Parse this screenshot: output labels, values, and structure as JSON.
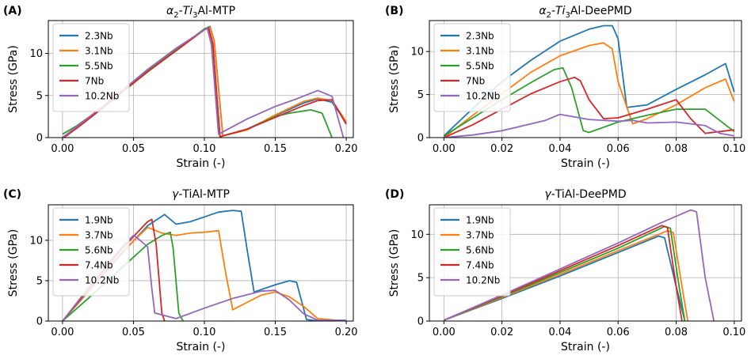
{
  "chart_data": [
    {
      "panel": "(A)",
      "title_main": "α",
      "title_sub": "2",
      "title_mid": "-Ti",
      "title_sub2": "3",
      "title_end": "Al-MTP",
      "type": "line",
      "xlabel": "Strain (-)",
      "ylabel": "Stress (GPa)",
      "xlim": [
        -0.01,
        0.205
      ],
      "ylim": [
        0,
        13.9
      ],
      "xticks": [
        "0.00",
        "0.05",
        "0.10",
        "0.15",
        "0.20"
      ],
      "xtick_vals": [
        0,
        0.05,
        0.1,
        0.15,
        0.2
      ],
      "yticks": [
        "0",
        "5",
        "10"
      ],
      "ytick_vals": [
        0,
        5,
        10
      ],
      "grid": true,
      "legend": "top-left",
      "series": [
        {
          "name": "2.3Nb",
          "color": "#1f77b4",
          "x": [
            0,
            0.01,
            0.02,
            0.04,
            0.06,
            0.08,
            0.1,
            0.104,
            0.107,
            0.113,
            0.13,
            0.15,
            0.17,
            0.18,
            0.19,
            0.2
          ],
          "y": [
            0,
            1.2,
            2.5,
            5.2,
            7.9,
            10.4,
            12.9,
            13.2,
            11.5,
            0.2,
            1.0,
            2.6,
            4.1,
            4.6,
            4.2,
            1.8
          ]
        },
        {
          "name": "3.1Nb",
          "color": "#ff7f0e",
          "x": [
            0,
            0.01,
            0.02,
            0.04,
            0.06,
            0.08,
            0.1,
            0.104,
            0.107,
            0.113,
            0.13,
            0.15,
            0.17,
            0.18,
            0.19,
            0.2
          ],
          "y": [
            0,
            1.2,
            2.5,
            5.2,
            7.9,
            10.4,
            12.9,
            13.1,
            11.4,
            0.2,
            0.9,
            2.7,
            4.3,
            4.7,
            4.4,
            1.9
          ]
        },
        {
          "name": "5.5Nb",
          "color": "#2ca02c",
          "x": [
            0,
            0.005,
            0.01,
            0.02,
            0.04,
            0.06,
            0.08,
            0.1,
            0.103,
            0.106,
            0.111,
            0.13,
            0.15,
            0.16,
            0.175,
            0.183,
            0.19
          ],
          "y": [
            0.4,
            0.9,
            1.4,
            2.6,
            5.2,
            7.9,
            10.4,
            12.9,
            13.1,
            11.0,
            0.1,
            1.0,
            2.5,
            2.9,
            3.3,
            2.9,
            0
          ]
        },
        {
          "name": "7Nb",
          "color": "#d62728",
          "x": [
            0.001,
            0.01,
            0.02,
            0.04,
            0.06,
            0.08,
            0.1,
            0.103,
            0.106,
            0.111,
            0.13,
            0.15,
            0.17,
            0.18,
            0.19,
            0.2
          ],
          "y": [
            0,
            1.1,
            2.4,
            5.1,
            7.8,
            10.3,
            12.8,
            13.0,
            11.2,
            0.1,
            1.0,
            2.4,
            3.8,
            4.4,
            4.5,
            1.6
          ]
        },
        {
          "name": "10.2Nb",
          "color": "#9467bd",
          "x": [
            0,
            0.01,
            0.02,
            0.04,
            0.06,
            0.08,
            0.1,
            0.102,
            0.105,
            0.11,
            0.13,
            0.15,
            0.165,
            0.18,
            0.19,
            0.198
          ],
          "y": [
            0,
            1.3,
            2.6,
            5.3,
            8.1,
            10.6,
            12.8,
            13.0,
            11.0,
            0.4,
            2.2,
            3.7,
            4.6,
            5.6,
            4.9,
            0
          ]
        }
      ]
    },
    {
      "panel": "(B)",
      "title_main": "α",
      "title_sub": "2",
      "title_mid": "-Ti",
      "title_sub2": "3",
      "title_end": "Al-DeePMD",
      "type": "line",
      "xlabel": "Strain (-)",
      "ylabel": "Stress (GPa)",
      "xlim": [
        -0.005,
        0.1025
      ],
      "ylim": [
        0,
        13.6
      ],
      "xticks": [
        "0.00",
        "0.02",
        "0.04",
        "0.06",
        "0.08",
        "0.10"
      ],
      "xtick_vals": [
        0,
        0.02,
        0.04,
        0.06,
        0.08,
        0.1
      ],
      "yticks": [
        "0",
        "5",
        "10"
      ],
      "ytick_vals": [
        0,
        5,
        10
      ],
      "grid": true,
      "legend": "top-left",
      "series": [
        {
          "name": "2.3Nb",
          "color": "#1f77b4",
          "x": [
            0,
            0.01,
            0.02,
            0.03,
            0.04,
            0.05,
            0.055,
            0.058,
            0.06,
            0.063,
            0.07,
            0.08,
            0.09,
            0.097,
            0.1
          ],
          "y": [
            0.2,
            3.4,
            6.5,
            9.0,
            11.2,
            12.6,
            13.0,
            13.0,
            11.5,
            3.5,
            3.8,
            5.6,
            7.3,
            8.6,
            5.3
          ]
        },
        {
          "name": "3.1Nb",
          "color": "#ff7f0e",
          "x": [
            0,
            0.01,
            0.02,
            0.03,
            0.04,
            0.05,
            0.055,
            0.058,
            0.06,
            0.065,
            0.07,
            0.08,
            0.09,
            0.097,
            0.1
          ],
          "y": [
            0,
            2.6,
            5.1,
            7.6,
            9.5,
            10.7,
            11.0,
            10.3,
            6.5,
            1.6,
            2.2,
            3.8,
            5.8,
            6.8,
            4.2
          ]
        },
        {
          "name": "5.5Nb",
          "color": "#2ca02c",
          "x": [
            0,
            0.01,
            0.02,
            0.03,
            0.038,
            0.041,
            0.044,
            0.048,
            0.05,
            0.06,
            0.07,
            0.08,
            0.09,
            0.1
          ],
          "y": [
            0.2,
            2.3,
            4.4,
            6.4,
            7.9,
            8.1,
            5.8,
            0.8,
            0.6,
            1.8,
            2.6,
            3.3,
            3.3,
            0.7
          ]
        },
        {
          "name": "7Nb",
          "color": "#d62728",
          "x": [
            0,
            0.01,
            0.02,
            0.03,
            0.04,
            0.045,
            0.047,
            0.05,
            0.055,
            0.06,
            0.07,
            0.08,
            0.085,
            0.09,
            0.1
          ],
          "y": [
            0,
            1.5,
            3.3,
            5.1,
            6.5,
            7.0,
            6.6,
            4.4,
            2.2,
            2.3,
            3.3,
            4.4,
            2.2,
            0.5,
            0.9
          ]
        },
        {
          "name": "10.2Nb",
          "color": "#9467bd",
          "x": [
            0,
            0.01,
            0.02,
            0.03,
            0.035,
            0.04,
            0.045,
            0.05,
            0.06,
            0.065,
            0.07,
            0.08,
            0.09,
            0.095,
            0.1
          ],
          "y": [
            0,
            0.3,
            0.8,
            1.6,
            2.0,
            2.7,
            2.4,
            2.1,
            1.9,
            2.0,
            1.7,
            1.8,
            1.4,
            0.5,
            0.2
          ]
        }
      ]
    },
    {
      "panel": "(C)",
      "title_main": "γ",
      "title_sub": "",
      "title_mid": "-TiAl-MTP",
      "title_sub2": "",
      "title_end": "",
      "type": "line",
      "xlabel": "Strain (-)",
      "ylabel": "Stress (GPa)",
      "xlim": [
        -0.01,
        0.205
      ],
      "ylim": [
        0,
        14.4
      ],
      "xticks": [
        "0.00",
        "0.05",
        "0.10",
        "0.15",
        "0.20"
      ],
      "xtick_vals": [
        0,
        0.05,
        0.1,
        0.15,
        0.2
      ],
      "yticks": [
        "0",
        "5",
        "10"
      ],
      "ytick_vals": [
        0,
        5,
        10
      ],
      "grid": true,
      "legend": "top-left",
      "series": [
        {
          "name": "1.9Nb",
          "color": "#1f77b4",
          "x": [
            0,
            0.02,
            0.04,
            0.06,
            0.072,
            0.08,
            0.09,
            0.1,
            0.11,
            0.12,
            0.126,
            0.13,
            0.135,
            0.15,
            0.16,
            0.165,
            0.172,
            0.18,
            0.2
          ],
          "y": [
            0,
            4.0,
            8.0,
            11.8,
            13.2,
            12.0,
            12.3,
            12.9,
            13.5,
            13.7,
            13.6,
            9.0,
            3.6,
            4.5,
            5.0,
            4.8,
            0.2,
            0,
            0
          ]
        },
        {
          "name": "3.7Nb",
          "color": "#ff7f0e",
          "x": [
            0,
            0.02,
            0.04,
            0.06,
            0.07,
            0.08,
            0.09,
            0.1,
            0.11,
            0.115,
            0.12,
            0.13,
            0.14,
            0.15,
            0.16,
            0.17,
            0.18,
            0.2
          ],
          "y": [
            0,
            4.1,
            8.2,
            11.6,
            10.9,
            10.6,
            10.9,
            11.0,
            11.2,
            6.0,
            1.4,
            2.3,
            3.2,
            3.6,
            3.0,
            1.8,
            0.3,
            0
          ]
        },
        {
          "name": "5.6Nb",
          "color": "#2ca02c",
          "x": [
            0,
            0.02,
            0.04,
            0.06,
            0.07,
            0.076,
            0.078,
            0.082,
            0.085
          ],
          "y": [
            0,
            3.1,
            6.3,
            9.5,
            10.6,
            11.0,
            9.0,
            1.0,
            0
          ]
        },
        {
          "name": "7.4Nb",
          "color": "#d62728",
          "x": [
            0,
            0.02,
            0.04,
            0.06,
            0.063,
            0.066,
            0.07,
            0.072
          ],
          "y": [
            0,
            4.3,
            8.6,
            12.3,
            12.6,
            9.5,
            1.0,
            0
          ]
        },
        {
          "name": "10.2Nb",
          "color": "#9467bd",
          "x": [
            0,
            0.02,
            0.04,
            0.05,
            0.052,
            0.056,
            0.06,
            0.063,
            0.065,
            0.08,
            0.1,
            0.12,
            0.14,
            0.15,
            0.16,
            0.17,
            0.18,
            0.2
          ],
          "y": [
            0,
            4.5,
            8.8,
            10.6,
            10.4,
            9.8,
            9.2,
            4.0,
            1.0,
            0.3,
            1.6,
            2.8,
            3.7,
            3.8,
            2.6,
            0.9,
            0.1,
            0.1
          ]
        }
      ]
    },
    {
      "panel": "(D)",
      "title_main": "γ",
      "title_sub": "",
      "title_mid": "-TiAl-DeePMD",
      "title_sub2": "",
      "title_end": "",
      "type": "line",
      "xlabel": "Strain (-)",
      "ylabel": "Stress (GPa)",
      "xlim": [
        -0.005,
        0.1025
      ],
      "ylim": [
        0,
        13.4
      ],
      "xticks": [
        "0.00",
        "0.02",
        "0.04",
        "0.06",
        "0.08",
        "0.10"
      ],
      "xtick_vals": [
        0,
        0.02,
        0.04,
        0.06,
        0.08,
        0.1
      ],
      "yticks": [
        "0",
        "5",
        "10"
      ],
      "ytick_vals": [
        0,
        5,
        10
      ],
      "grid": true,
      "legend": "top-left",
      "series": [
        {
          "name": "1.9Nb",
          "color": "#1f77b4",
          "x": [
            0,
            0.02,
            0.04,
            0.06,
            0.074,
            0.076,
            0.08,
            0.083
          ],
          "y": [
            0.1,
            2.6,
            5.2,
            7.9,
            9.8,
            9.6,
            4.0,
            0
          ]
        },
        {
          "name": "3.7Nb",
          "color": "#ff7f0e",
          "x": [
            0,
            0.02,
            0.04,
            0.06,
            0.077,
            0.079,
            0.082,
            0.084
          ],
          "y": [
            0.1,
            2.7,
            5.4,
            8.1,
            10.4,
            10.2,
            4.0,
            0
          ]
        },
        {
          "name": "5.6Nb",
          "color": "#2ca02c",
          "x": [
            0,
            0.02,
            0.04,
            0.06,
            0.076,
            0.078,
            0.081,
            0.083
          ],
          "y": [
            0.1,
            2.8,
            5.6,
            8.4,
            10.9,
            10.7,
            4.0,
            0
          ]
        },
        {
          "name": "7.4Nb",
          "color": "#d62728",
          "x": [
            0,
            0.02,
            0.04,
            0.06,
            0.075,
            0.077,
            0.08,
            0.082
          ],
          "y": [
            0.1,
            2.9,
            5.8,
            8.7,
            11.0,
            10.8,
            4.0,
            0
          ]
        },
        {
          "name": "10.2Nb",
          "color": "#9467bd",
          "x": [
            0,
            0.02,
            0.04,
            0.06,
            0.074,
            0.085,
            0.087,
            0.09,
            0.093
          ],
          "y": [
            0.1,
            3.0,
            6.0,
            9.0,
            11.2,
            12.8,
            12.6,
            5.0,
            0
          ]
        }
      ]
    }
  ]
}
